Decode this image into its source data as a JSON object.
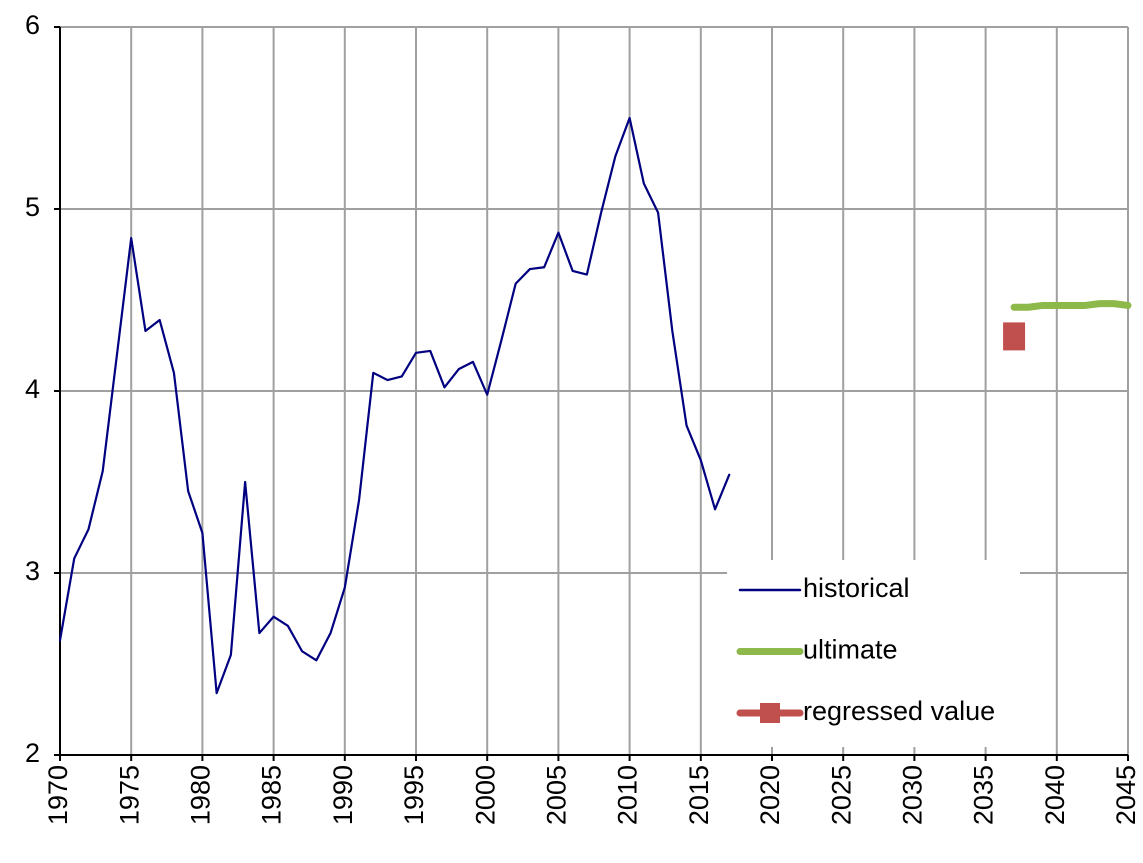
{
  "chart_data": {
    "type": "line",
    "series": [
      {
        "name": "historical",
        "color": "#000080",
        "style": "line",
        "x": [
          1970,
          1971,
          1972,
          1973,
          1974,
          1975,
          1976,
          1977,
          1978,
          1979,
          1980,
          1981,
          1982,
          1983,
          1984,
          1985,
          1986,
          1987,
          1988,
          1989,
          1990,
          1991,
          1992,
          1993,
          1994,
          1995,
          1996,
          1997,
          1998,
          1999,
          2000,
          2001,
          2002,
          2003,
          2004,
          2005,
          2006,
          2007,
          2008,
          2009,
          2010,
          2011,
          2012,
          2013,
          2014,
          2015,
          2016,
          2017
        ],
        "values": [
          2.63,
          3.08,
          3.24,
          3.56,
          4.2,
          4.84,
          4.33,
          4.39,
          4.1,
          3.45,
          3.22,
          2.34,
          2.55,
          3.5,
          2.67,
          2.76,
          2.71,
          2.57,
          2.52,
          2.67,
          2.92,
          3.4,
          4.1,
          4.06,
          4.08,
          4.21,
          4.22,
          4.02,
          4.12,
          4.16,
          3.98,
          4.28,
          4.59,
          4.67,
          4.68,
          4.87,
          4.66,
          4.64,
          4.98,
          5.29,
          5.5,
          5.14,
          4.98,
          4.33,
          3.81,
          3.62,
          3.35,
          3.54
        ]
      },
      {
        "name": "ultimate",
        "color": "#8db84a",
        "style": "thick-line",
        "x": [
          2037,
          2038,
          2039,
          2040,
          2041,
          2042,
          2043,
          2044,
          2045
        ],
        "values": [
          4.46,
          4.46,
          4.47,
          4.47,
          4.47,
          4.47,
          4.48,
          4.48,
          4.47
        ]
      },
      {
        "name": "regressed value",
        "color": "#c0504d",
        "style": "square",
        "x": [
          2037
        ],
        "values": [
          4.3
        ]
      }
    ],
    "xlim": [
      1970,
      2045
    ],
    "xticks": [
      1970,
      1975,
      1980,
      1985,
      1990,
      1995,
      2000,
      2005,
      2010,
      2015,
      2020,
      2025,
      2030,
      2035,
      2040,
      2045
    ],
    "ylim": [
      2,
      6
    ],
    "yticks": [
      2,
      3,
      4,
      5,
      6
    ],
    "grid": true,
    "legend": "lower right"
  }
}
